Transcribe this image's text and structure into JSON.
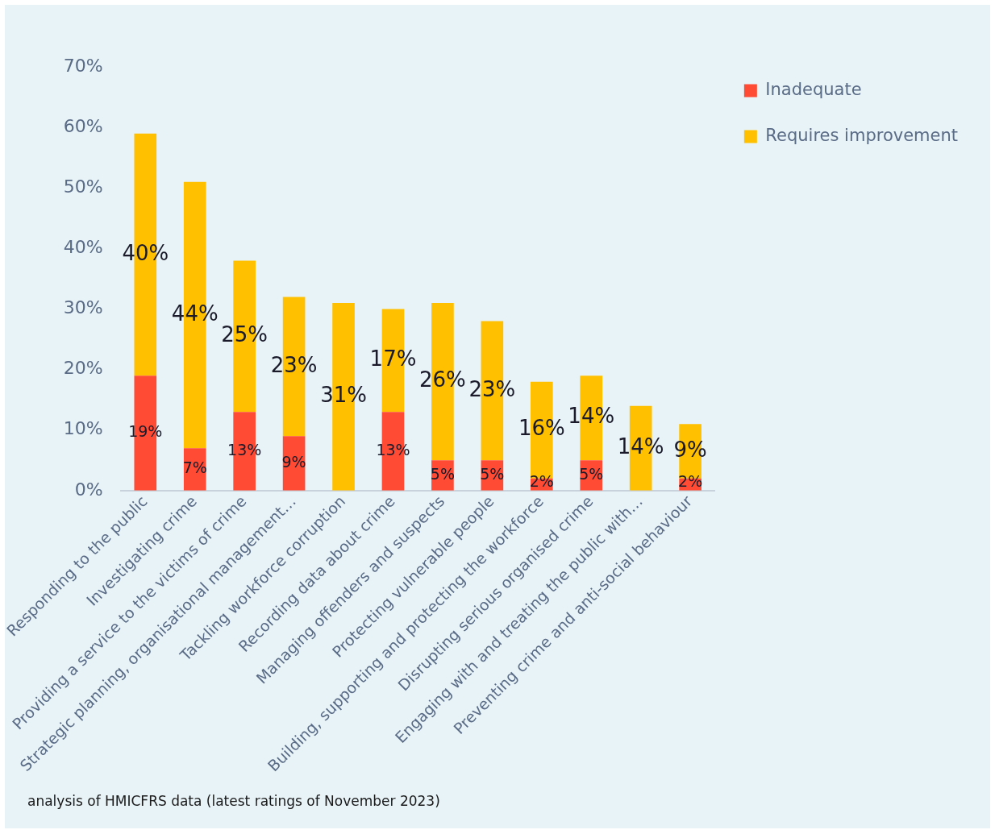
{
  "chart_data": {
    "type": "bar",
    "stacked": true,
    "categories": [
      "Responding to the public",
      "Investigating crime",
      "Providing a service to the victims of crime",
      "Strategic planning, organisational management…",
      "Tackling workforce corruption",
      "Recording data about crime",
      "Managing offenders and suspects",
      "Protecting vulnerable people",
      "Building, supporting and protecting the workforce",
      "Disrupting serious organised crime",
      "Engaging with and treating the public with…",
      "Preventing crime and anti-social behaviour"
    ],
    "series": [
      {
        "name": "Inadequate",
        "color": "#ff4b33",
        "values": [
          19,
          7,
          13,
          9,
          null,
          13,
          5,
          5,
          2,
          5,
          null,
          2
        ],
        "value_labels": [
          "19%",
          "7%",
          "13%",
          "9%",
          null,
          "13%",
          "5%",
          "5%",
          "2%",
          "5%",
          null,
          "2%"
        ]
      },
      {
        "name": "Requires improvement",
        "color": "#ffc000",
        "values": [
          40,
          44,
          25,
          23,
          31,
          17,
          26,
          23,
          16,
          14,
          14,
          9
        ],
        "value_labels": [
          "40%",
          "44%",
          "25%",
          "23%",
          "31%",
          "17%",
          "26%",
          "23%",
          "16%",
          "14%",
          "14%",
          "9%"
        ]
      }
    ],
    "ylim": [
      0,
      70
    ],
    "yticks": [
      {
        "value": 0,
        "label": "0%"
      },
      {
        "value": 10,
        "label": "10%"
      },
      {
        "value": 20,
        "label": "20%"
      },
      {
        "value": 30,
        "label": "30%"
      },
      {
        "value": 40,
        "label": "40%"
      },
      {
        "value": 50,
        "label": "50%"
      },
      {
        "value": 60,
        "label": "60%"
      },
      {
        "value": 70,
        "label": "70%"
      }
    ],
    "grid": false,
    "legend": "top right",
    "annotations": [
      "analysis of HMICFRS data (latest ratings of November 2023)"
    ]
  }
}
